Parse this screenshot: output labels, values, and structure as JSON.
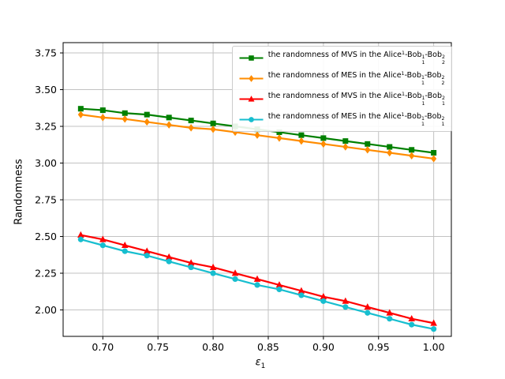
{
  "figure": {
    "background": "#ffffff"
  },
  "chart_data": {
    "type": "line",
    "title": "",
    "xlabel": {
      "base": "ε",
      "sub": "1"
    },
    "ylabel": "Randomness",
    "xlim": [
      0.664,
      1.016
    ],
    "ylim": [
      1.82,
      3.82
    ],
    "grid": true,
    "grid_color": "#c2c2c2",
    "axis_color": "#000000",
    "legend_position": "upper right",
    "xticks": [
      0.7,
      0.75,
      0.8,
      0.85,
      0.9,
      0.95,
      1.0
    ],
    "xtick_labels": [
      "0.70",
      "0.75",
      "0.80",
      "0.85",
      "0.90",
      "0.95",
      "1.00"
    ],
    "yticks": [
      2.0,
      2.25,
      2.5,
      2.75,
      3.0,
      3.25,
      3.5,
      3.75
    ],
    "ytick_labels": [
      "2.00",
      "2.25",
      "2.50",
      "2.75",
      "3.00",
      "3.25",
      "3.50",
      "3.75"
    ],
    "x": [
      0.68,
      0.7,
      0.72,
      0.74,
      0.76,
      0.78,
      0.8,
      0.82,
      0.84,
      0.86,
      0.88,
      0.9,
      0.92,
      0.94,
      0.96,
      0.98,
      1.0
    ],
    "series": [
      {
        "name": "the randomness of MVS in the Alice¹-Bob¹₁-Bob²₂",
        "marker": "square",
        "color": "#008000",
        "values": [
          3.37,
          3.36,
          3.34,
          3.33,
          3.31,
          3.29,
          3.27,
          3.25,
          3.23,
          3.21,
          3.19,
          3.17,
          3.15,
          3.13,
          3.11,
          3.09,
          3.07
        ],
        "label_parts": [
          {
            "text": "the randomness of MVS in the Alice"
          },
          {
            "sup": "1"
          },
          {
            "text": "-Bob"
          },
          {
            "sup": "1",
            "sub": "1"
          },
          {
            "text": "-Bob"
          },
          {
            "sup": "2",
            "sub": "2"
          }
        ]
      },
      {
        "name": "the randomness of MES in the Alice¹-Bob¹₁-Bob²₂",
        "marker": "diamond",
        "color": "#ff8c00",
        "values": [
          3.33,
          3.31,
          3.3,
          3.28,
          3.26,
          3.24,
          3.23,
          3.21,
          3.19,
          3.17,
          3.15,
          3.13,
          3.11,
          3.09,
          3.07,
          3.05,
          3.03
        ],
        "label_parts": [
          {
            "text": "the randomness of MES in the Alice"
          },
          {
            "sup": "1"
          },
          {
            "text": "-Bob"
          },
          {
            "sup": "1",
            "sub": "1"
          },
          {
            "text": "-Bob"
          },
          {
            "sup": "2",
            "sub": "2"
          }
        ]
      },
      {
        "name": "the randomness of MVS in the Alice¹-Bob¹₁-Bob²₁",
        "marker": "triangle-up",
        "color": "#ff0000",
        "values": [
          2.51,
          2.48,
          2.44,
          2.4,
          2.36,
          2.32,
          2.29,
          2.25,
          2.21,
          2.17,
          2.13,
          2.09,
          2.06,
          2.02,
          1.98,
          1.94,
          1.91
        ],
        "label_parts": [
          {
            "text": "the randomness of MVS in the Alice"
          },
          {
            "sup": "1"
          },
          {
            "text": "-Bob"
          },
          {
            "sup": "1",
            "sub": "1"
          },
          {
            "text": "-Bob"
          },
          {
            "sup": "2",
            "sub": "1"
          }
        ]
      },
      {
        "name": "the randomness of MES in the Alice¹-Bob¹₁-Bob²₁",
        "marker": "circle",
        "color": "#17becf",
        "values": [
          2.48,
          2.44,
          2.4,
          2.37,
          2.33,
          2.29,
          2.25,
          2.21,
          2.17,
          2.14,
          2.1,
          2.06,
          2.02,
          1.98,
          1.94,
          1.9,
          1.87
        ],
        "label_parts": [
          {
            "text": "the randomness of MES in the Alice"
          },
          {
            "sup": "1"
          },
          {
            "text": "-Bob"
          },
          {
            "sup": "1",
            "sub": "1"
          },
          {
            "text": "-Bob"
          },
          {
            "sup": "2",
            "sub": "1"
          }
        ]
      }
    ]
  }
}
